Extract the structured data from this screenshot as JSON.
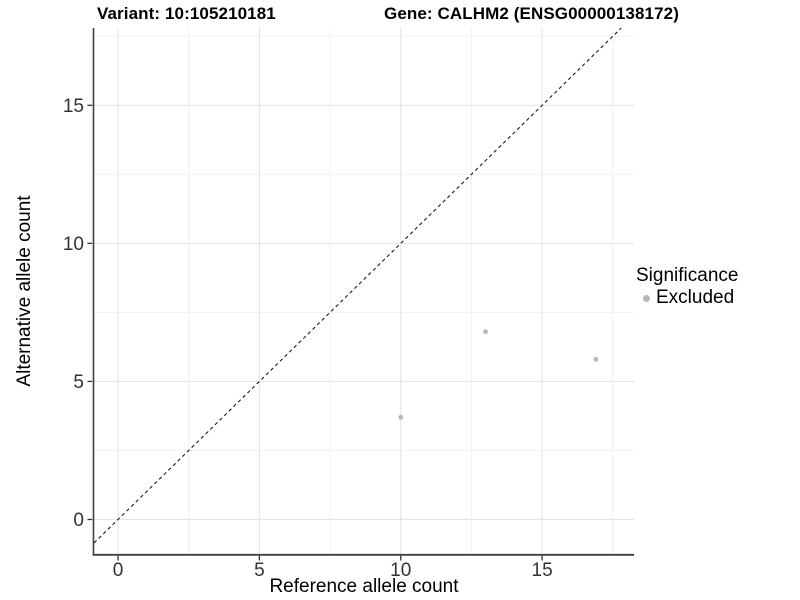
{
  "header": {
    "variant_title": "Variant: 10:105210181",
    "gene_title": "Gene: CALHM2 (ENSG00000138172)"
  },
  "legend": {
    "title": "Significance",
    "items": [
      {
        "label": "Excluded",
        "color": "#b8b8b8"
      }
    ]
  },
  "chart_data": {
    "type": "scatter",
    "title": "Variant: 10:105210181 — Gene: CALHM2 (ENSG00000138172)",
    "xlabel": "Reference allele count",
    "ylabel": "Alternative allele count",
    "xlim": [
      -0.85,
      18.25
    ],
    "ylim": [
      -1.25,
      17.8
    ],
    "x_ticks": [
      0,
      5,
      10,
      15
    ],
    "y_ticks": [
      0,
      5,
      10,
      15
    ],
    "x_minor_ticks": [
      2.5,
      7.5,
      12.5,
      17.5
    ],
    "y_minor_ticks": [
      2.5,
      7.5,
      12.5,
      17.5
    ],
    "grid": true,
    "legend_position": "right",
    "series": [
      {
        "name": "Excluded",
        "color": "#b8b8b8",
        "points": [
          [
            10.0,
            3.7
          ],
          [
            13.0,
            6.8
          ],
          [
            16.9,
            5.8
          ]
        ]
      }
    ],
    "identity_line": {
      "slope": 1,
      "intercept": 0,
      "style": "dashed",
      "color": "#1a1a1a"
    }
  },
  "style": {
    "background": "#ffffff",
    "grid_major": "#e4e4e4",
    "grid_minor": "#f0f0f0",
    "axis_line": "#3f3f3f",
    "tick_color": "#333333",
    "point_color": "#b8b8b8"
  }
}
